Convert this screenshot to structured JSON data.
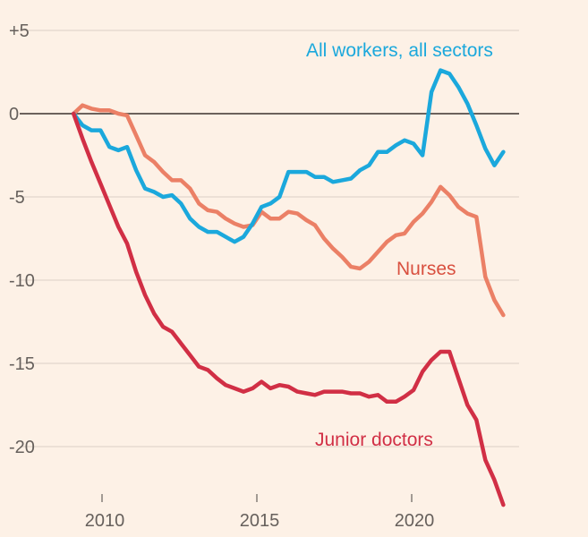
{
  "chart_data": {
    "type": "line",
    "title": "",
    "xlabel": "",
    "ylabel": "",
    "xlim": [
      2008.2,
      2023.5
    ],
    "ylim": [
      -24,
      5
    ],
    "grid": true,
    "legend": "inline labels",
    "x_ticks": [
      "2010",
      "2015",
      "2020"
    ],
    "x_tick_values": [
      2010,
      2015,
      2020
    ],
    "y_ticks": [
      "+5",
      "0",
      "-5",
      "-10",
      "-15",
      "-20"
    ],
    "y_tick_values": [
      5,
      0,
      -5,
      -10,
      -15,
      -20
    ],
    "x": [
      2009.08,
      2009.37,
      2009.66,
      2009.95,
      2010.24,
      2010.53,
      2010.81,
      2011.1,
      2011.39,
      2011.68,
      2011.97,
      2012.26,
      2012.55,
      2012.84,
      2013.13,
      2013.42,
      2013.71,
      2013.99,
      2014.28,
      2014.57,
      2014.86,
      2015.15,
      2015.44,
      2015.73,
      2016.02,
      2016.31,
      2016.6,
      2016.88,
      2017.17,
      2017.46,
      2017.75,
      2018.04,
      2018.33,
      2018.62,
      2018.91,
      2019.2,
      2019.49,
      2019.77,
      2020.06,
      2020.35,
      2020.64,
      2020.93,
      2021.22,
      2021.51,
      2021.8,
      2022.09,
      2022.38,
      2022.67,
      2022.96
    ],
    "series": [
      {
        "name": "All workers, all sectors",
        "color": "#1ba8dc",
        "values": [
          0,
          -0.7,
          -1.0,
          -1.0,
          -2.0,
          -2.2,
          -2.0,
          -3.4,
          -4.5,
          -4.7,
          -5.0,
          -4.9,
          -5.4,
          -6.3,
          -6.8,
          -7.1,
          -7.1,
          -7.4,
          -7.7,
          -7.4,
          -6.6,
          -5.6,
          -5.4,
          -5.0,
          -3.5,
          -3.5,
          -3.5,
          -3.8,
          -3.8,
          -4.1,
          -4.0,
          -3.9,
          -3.4,
          -3.1,
          -2.3,
          -2.3,
          -1.9,
          -1.6,
          -1.8,
          -2.5,
          1.3,
          2.6,
          2.4,
          1.6,
          0.6,
          -0.7,
          -2.1,
          -3.1,
          -2.3
        ]
      },
      {
        "name": "Nurses",
        "color": "#eb8066",
        "label_color": "#d9503f",
        "values": [
          0,
          0.5,
          0.3,
          0.2,
          0.2,
          0,
          -0.1,
          -1.3,
          -2.5,
          -2.9,
          -3.5,
          -4.0,
          -4.0,
          -4.5,
          -5.4,
          -5.8,
          -5.9,
          -6.3,
          -6.6,
          -6.8,
          -6.7,
          -5.9,
          -6.3,
          -6.3,
          -5.9,
          -6.0,
          -6.4,
          -6.7,
          -7.5,
          -8.1,
          -8.6,
          -9.2,
          -9.3,
          -8.9,
          -8.3,
          -7.7,
          -7.3,
          -7.2,
          -6.5,
          -6.0,
          -5.3,
          -4.4,
          -4.9,
          -5.6,
          -6.0,
          -6.2,
          -9.8,
          -11.2,
          -12.1
        ]
      },
      {
        "name": "Junior doctors",
        "color": "#d12f45",
        "values": [
          0,
          -1.5,
          -2.9,
          -4.2,
          -5.5,
          -6.8,
          -7.8,
          -9.5,
          -10.9,
          -12.0,
          -12.8,
          -13.1,
          -13.8,
          -14.5,
          -15.2,
          -15.4,
          -15.9,
          -16.3,
          -16.5,
          -16.7,
          -16.5,
          -16.1,
          -16.5,
          -16.3,
          -16.4,
          -16.7,
          -16.8,
          -16.9,
          -16.7,
          -16.7,
          -16.7,
          -16.8,
          -16.8,
          -17.0,
          -16.9,
          -17.3,
          -17.3,
          -17.0,
          -16.6,
          -15.5,
          -14.8,
          -14.3,
          -14.3,
          -15.9,
          -17.5,
          -18.4,
          -20.8,
          -22.0,
          -23.5
        ]
      }
    ]
  }
}
